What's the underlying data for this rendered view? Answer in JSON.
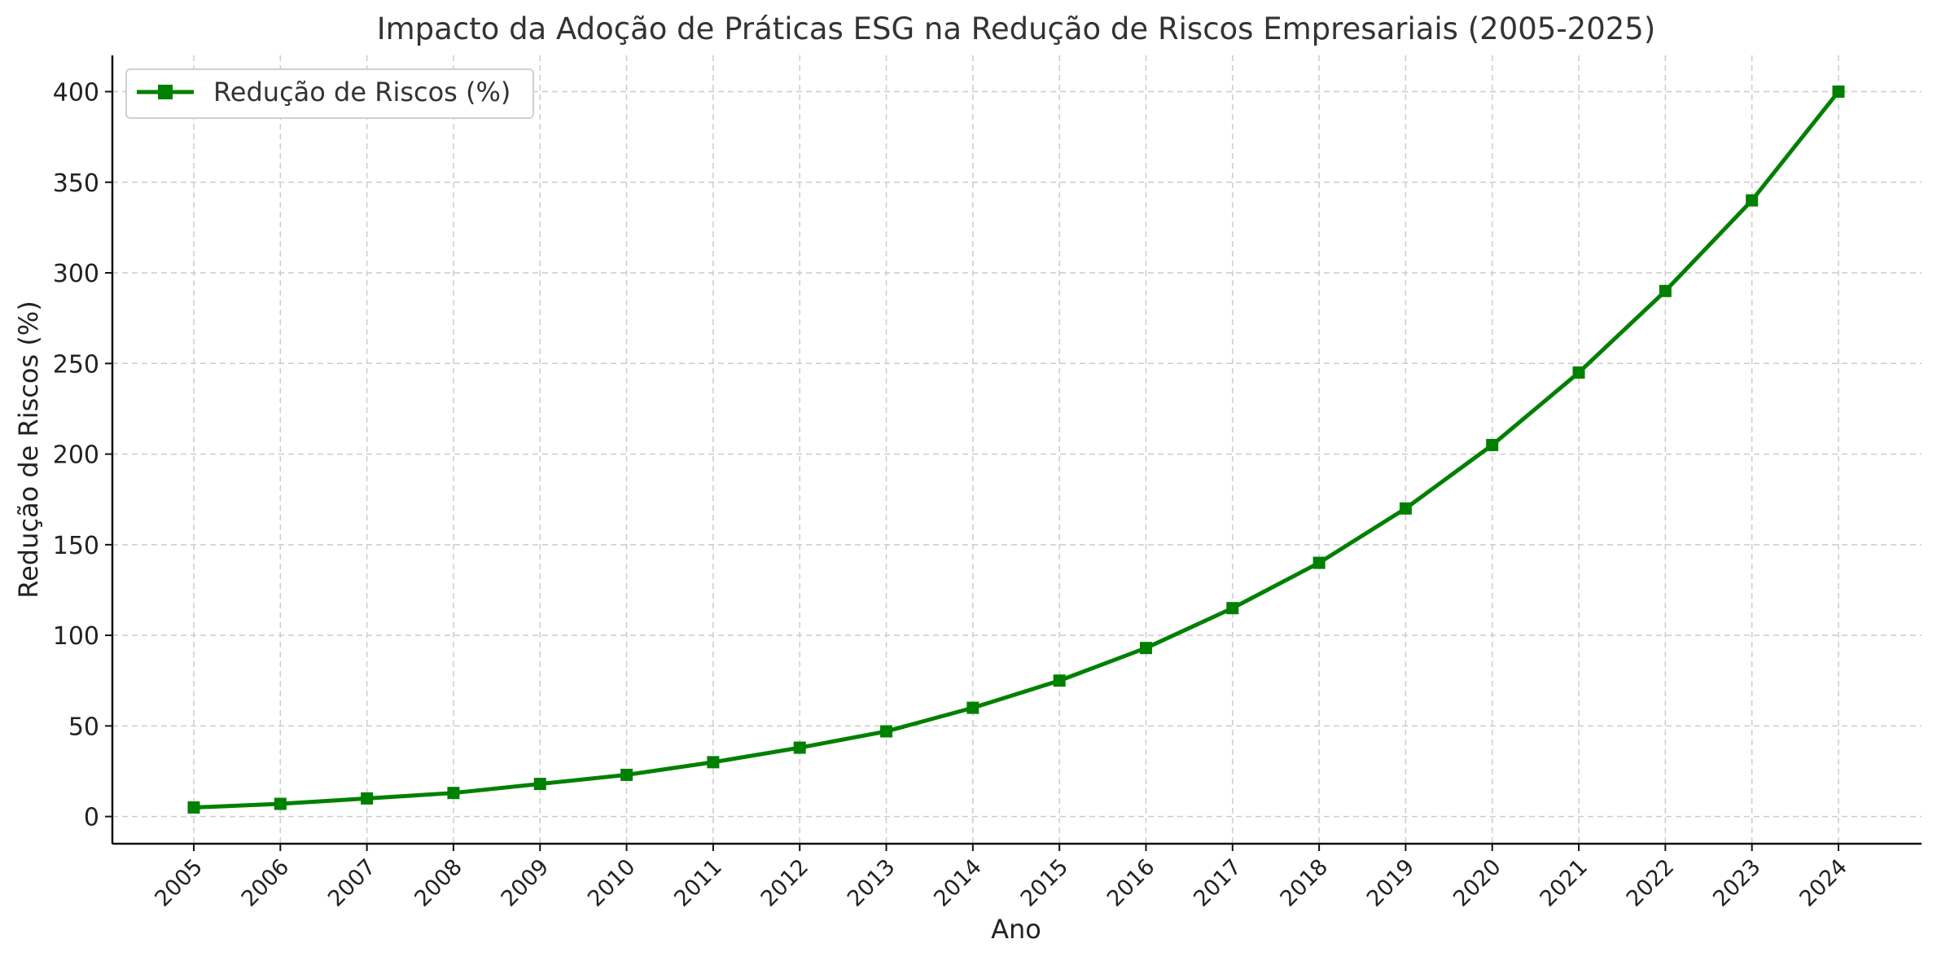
{
  "chart_data": {
    "type": "line",
    "title": "Impacto da Adoção de Práticas ESG na Redução de Riscos Empresariais (2005-2025)",
    "xlabel": "Ano",
    "ylabel": "Redução de Riscos (%)",
    "categories": [
      "2005",
      "2006",
      "2007",
      "2008",
      "2009",
      "2010",
      "2011",
      "2012",
      "2013",
      "2014",
      "2015",
      "2016",
      "2017",
      "2018",
      "2019",
      "2020",
      "2021",
      "2022",
      "2023",
      "2024"
    ],
    "series": [
      {
        "name": "Redução de Riscos (%)",
        "values": [
          5,
          7,
          10,
          13,
          18,
          23,
          30,
          38,
          47,
          60,
          75,
          93,
          115,
          140,
          170,
          205,
          245,
          290,
          340,
          400
        ],
        "color": "#008000",
        "marker": "square"
      }
    ],
    "ylim": [
      -15,
      420
    ],
    "yticks": [
      0,
      50,
      100,
      150,
      200,
      250,
      300,
      350,
      400
    ],
    "grid": true,
    "legend_position": "top-left"
  }
}
